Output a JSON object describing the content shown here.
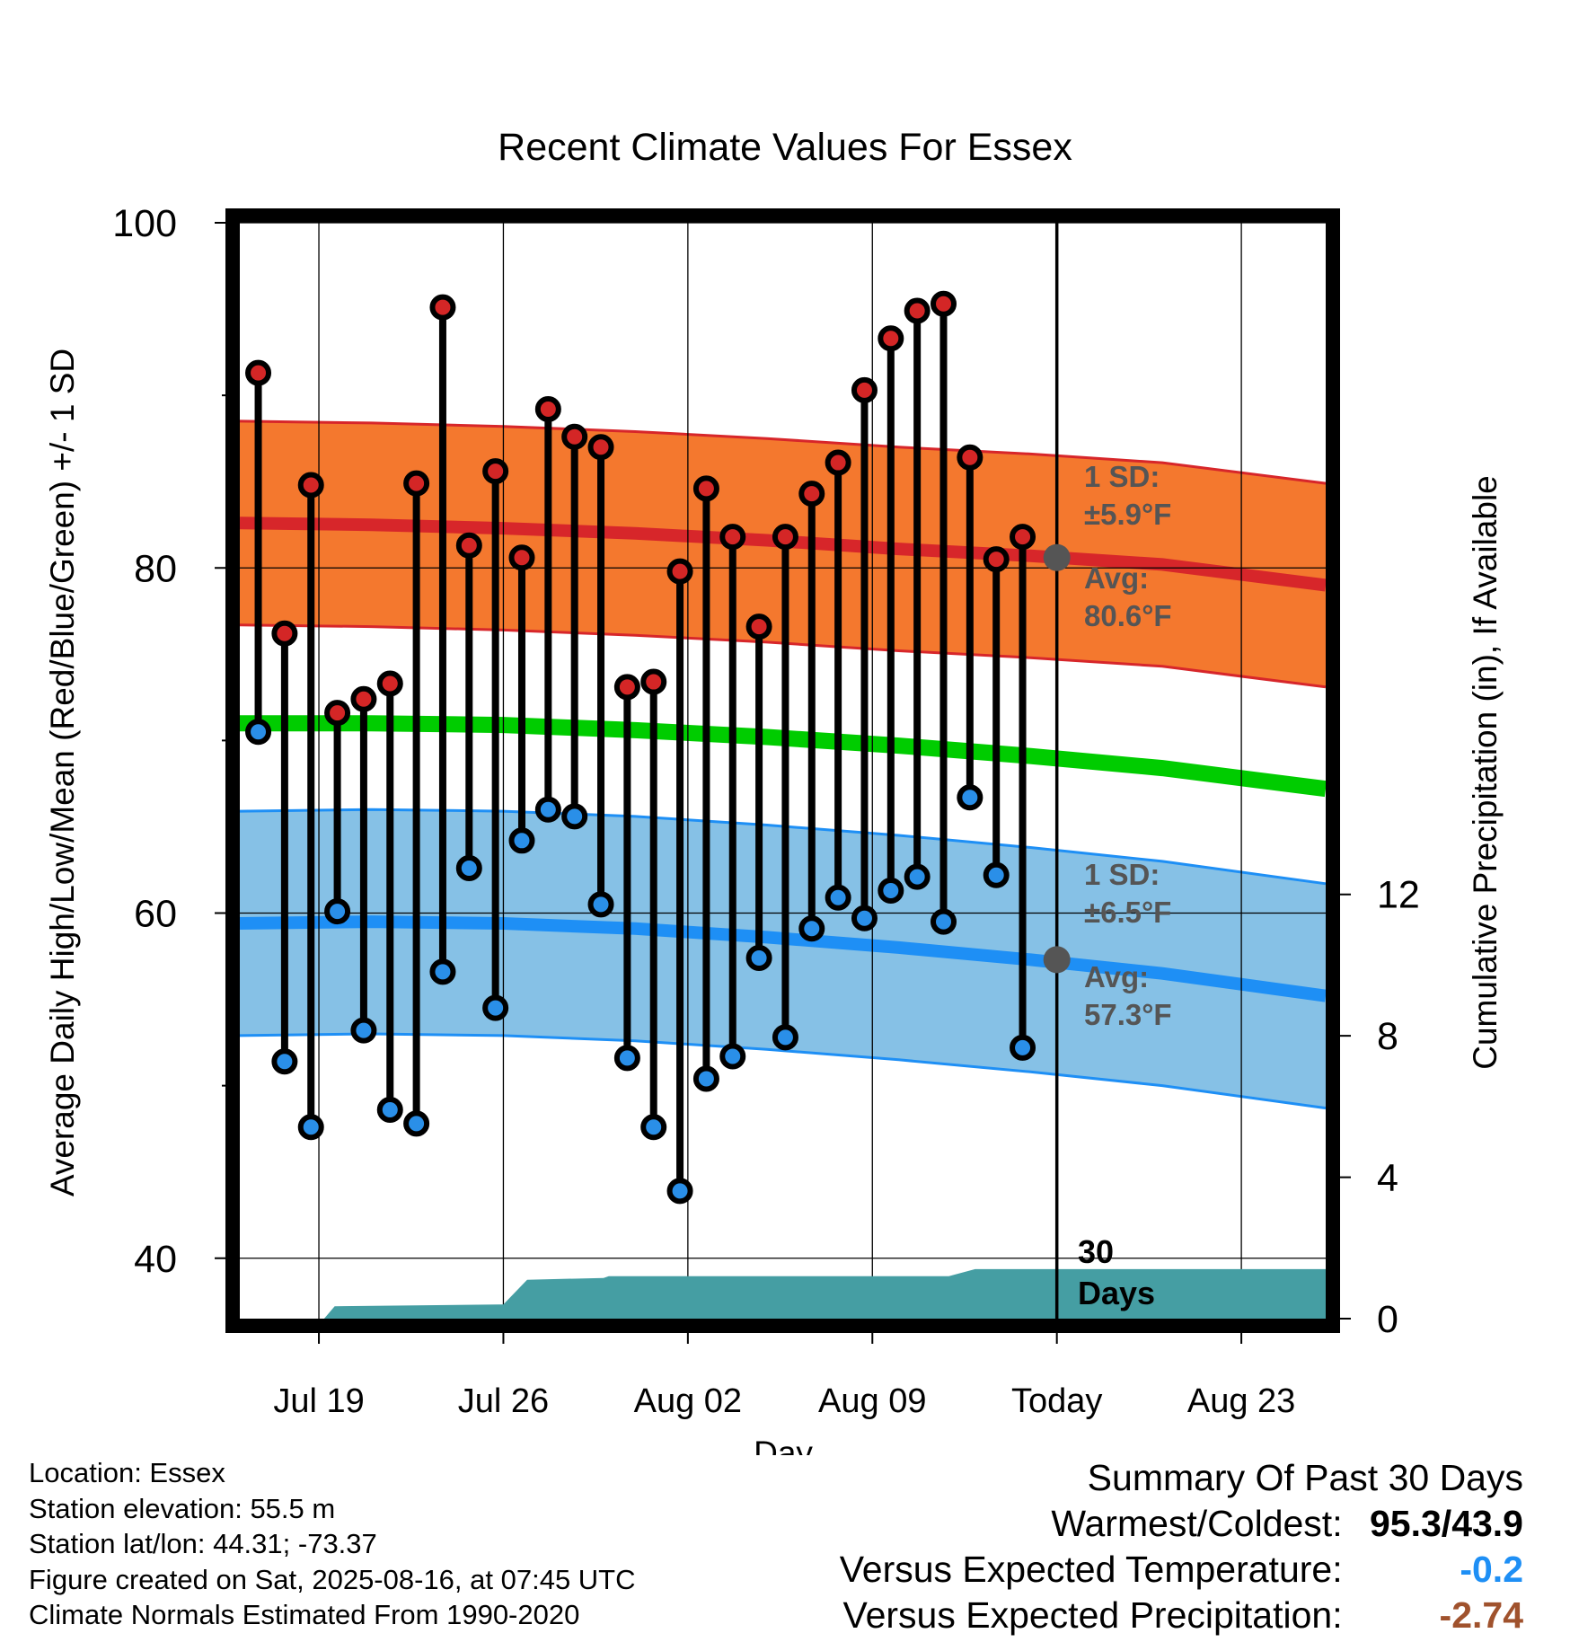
{
  "chart_data": {
    "type": "line",
    "title": "Recent Climate Values For Essex",
    "xlabel": "Day",
    "ylabel": "Average Daily High/Low/Mean (Red/Blue/Green) +/- 1 SD",
    "y2label": "Cumulative Precipitation (in), If Available",
    "ylim": [
      36.5,
      100
    ],
    "y_ticks": [
      40,
      60,
      80,
      100
    ],
    "y2lim": [
      0,
      31
    ],
    "y2_ticks": [
      0,
      4,
      8,
      12
    ],
    "xlim": [
      0,
      41.2
    ],
    "x_ticks": [
      {
        "x": 3,
        "label": "Jul 19"
      },
      {
        "x": 10,
        "label": "Jul 26"
      },
      {
        "x": 17,
        "label": "Aug 02"
      },
      {
        "x": 24,
        "label": "Aug 09"
      },
      {
        "x": 31,
        "label": "Today"
      },
      {
        "x": 38,
        "label": "Aug 23"
      }
    ],
    "today_x": 31,
    "grid": true,
    "days": [
      {
        "x": 0.7,
        "high": 91.3,
        "low": 70.5
      },
      {
        "x": 1.7,
        "high": 76.2,
        "low": 51.4
      },
      {
        "x": 2.7,
        "high": 84.8,
        "low": 47.6
      },
      {
        "x": 3.7,
        "high": 71.6,
        "low": 60.1
      },
      {
        "x": 4.7,
        "high": 72.4,
        "low": 53.2
      },
      {
        "x": 5.7,
        "high": 73.3,
        "low": 48.6
      },
      {
        "x": 6.7,
        "high": 84.9,
        "low": 47.8
      },
      {
        "x": 7.7,
        "high": 95.1,
        "low": 56.6
      },
      {
        "x": 8.7,
        "high": 81.3,
        "low": 62.6
      },
      {
        "x": 9.7,
        "high": 85.6,
        "low": 54.5
      },
      {
        "x": 10.7,
        "high": 80.6,
        "low": 64.2
      },
      {
        "x": 11.7,
        "high": 89.2,
        "low": 66.0
      },
      {
        "x": 12.7,
        "high": 87.6,
        "low": 65.6
      },
      {
        "x": 13.7,
        "high": 87.0,
        "low": 60.5
      },
      {
        "x": 14.7,
        "high": 73.1,
        "low": 51.6
      },
      {
        "x": 15.7,
        "high": 73.4,
        "low": 47.6
      },
      {
        "x": 16.7,
        "high": 79.8,
        "low": 43.9
      },
      {
        "x": 17.7,
        "high": 84.6,
        "low": 50.4
      },
      {
        "x": 18.7,
        "high": 81.8,
        "low": 51.7
      },
      {
        "x": 19.7,
        "high": 76.6,
        "low": 57.4
      },
      {
        "x": 20.7,
        "high": 81.8,
        "low": 52.8
      },
      {
        "x": 21.7,
        "high": 84.3,
        "low": 59.1
      },
      {
        "x": 22.7,
        "high": 86.1,
        "low": 60.9
      },
      {
        "x": 23.7,
        "high": 90.3,
        "low": 59.7
      },
      {
        "x": 24.7,
        "high": 93.3,
        "low": 61.3
      },
      {
        "x": 25.7,
        "high": 94.9,
        "low": 62.1
      },
      {
        "x": 26.7,
        "high": 95.3,
        "low": 59.5
      },
      {
        "x": 27.7,
        "high": 86.4,
        "low": 66.7
      },
      {
        "x": 28.7,
        "high": 80.5,
        "low": 62.2
      },
      {
        "x": 29.7,
        "high": 81.8,
        "low": 52.2
      }
    ],
    "normals": {
      "x": [
        0,
        5,
        10,
        15,
        20,
        25,
        30,
        35,
        41.2
      ],
      "high_avg": [
        82.6,
        82.5,
        82.3,
        82.0,
        81.6,
        81.1,
        80.7,
        80.2,
        79.0
      ],
      "low_avg": [
        59.4,
        59.5,
        59.4,
        59.1,
        58.6,
        58.0,
        57.3,
        56.5,
        55.2
      ],
      "mean_avg": [
        71.0,
        71.0,
        70.9,
        70.6,
        70.2,
        69.7,
        69.1,
        68.4,
        67.2
      ],
      "high_sd": 5.9,
      "low_sd": 6.5
    },
    "precip": {
      "x": [
        0,
        3.2,
        3.6,
        9.8,
        10.0,
        10.9,
        13.8,
        14.0,
        26.9,
        27.9,
        41.2
      ],
      "y": [
        0,
        0,
        0.35,
        0.4,
        0.4,
        1.1,
        1.15,
        1.2,
        1.2,
        1.4,
        1.4
      ]
    },
    "annotations": {
      "high_sd_label": "1 SD:",
      "high_sd_value": "±5.9°F",
      "high_avg_label": "Avg:",
      "high_avg_value": "80.6°F",
      "high_avg_marker": 80.6,
      "low_sd_label": "1 SD:",
      "low_sd_value": "±6.5°F",
      "low_avg_label": "Avg:",
      "low_avg_value": "57.3°F",
      "low_avg_marker": 57.3,
      "days_number": "30",
      "days_word": "Days"
    },
    "colors": {
      "high_band": "#f4782e",
      "high_line": "#d7262a",
      "low_band": "#86c1e6",
      "low_line": "#1e8ff5",
      "mean_line": "#00cc00",
      "precip": "#459ea3",
      "high_dot": "#d42626",
      "low_dot": "#2a8fe8",
      "annot": "#555555"
    }
  },
  "footer": {
    "location": "Location: Essex",
    "elevation": "Station elevation: 55.5 m",
    "latlon": "Station lat/lon: 44.31; -73.37",
    "created": "Figure created on Sat, 2025-08-16, at 07:45 UTC",
    "normals": "Climate Normals Estimated From 1990-2020"
  },
  "summary": {
    "title": "Summary Of Past 30 Days",
    "warm_cold_label": "Warmest/Coldest:",
    "warm_cold_value": "95.3/43.9",
    "temp_label": "Versus Expected Temperature:",
    "temp_value": "-0.2",
    "temp_color": "#1e8ff5",
    "precip_label": "Versus Expected Precipitation:",
    "precip_value": "-2.74",
    "precip_color": "#a0522d"
  }
}
